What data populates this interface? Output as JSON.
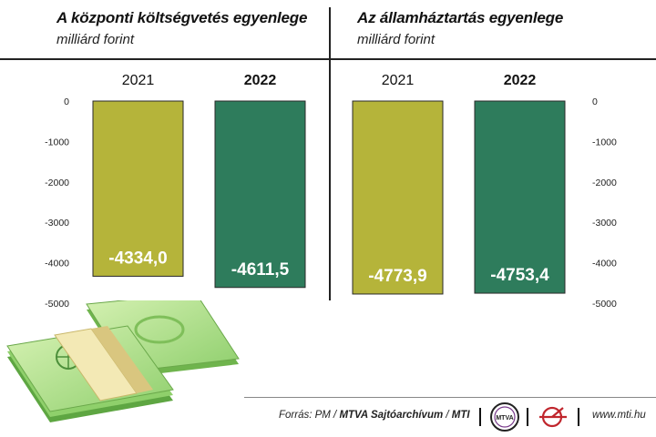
{
  "chart_data": [
    {
      "type": "bar",
      "title": "A központi költségvetés egyenlege",
      "subtitle": "milliárd forint",
      "categories": [
        "2021",
        "2022"
      ],
      "values": [
        -4334.0,
        -4611.5
      ],
      "value_labels": [
        "-4334,0",
        "-4611,5"
      ],
      "colors": [
        "#b5b43a",
        "#2e7c5c"
      ],
      "ylim": [
        -5000,
        0
      ],
      "yticks": [
        "0",
        "-1000",
        "-2000",
        "-3000",
        "-4000",
        "-5000"
      ],
      "grid": false
    },
    {
      "type": "bar",
      "title": "Az államháztartás egyenlege",
      "subtitle": "milliárd forint",
      "categories": [
        "2021",
        "2022"
      ],
      "values": [
        -4773.9,
        -4753.4
      ],
      "value_labels": [
        "-4773,9",
        "-4753,4"
      ],
      "colors": [
        "#b5b43a",
        "#2e7c5c"
      ],
      "ylim": [
        -5000,
        0
      ],
      "yticks": [
        "0",
        "-1000",
        "-2000",
        "-3000",
        "-4000",
        "-5000"
      ],
      "grid": false
    }
  ],
  "footer": {
    "source_prefix": "Forrás: PM / ",
    "source_bold": "MTVA Sajtóarchívum",
    "source_sep": " / ",
    "source_mti": "MTI",
    "logo_text": "MTVA",
    "website": "www.mti.hu"
  },
  "illustration": {
    "icon": "money-stack-icon"
  }
}
